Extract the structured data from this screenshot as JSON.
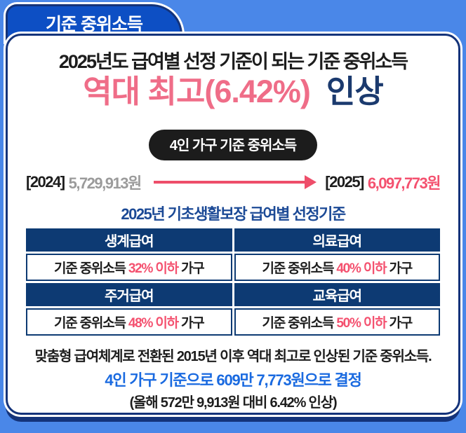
{
  "colors": {
    "background_blue": "#4a87e8",
    "tab_blue": "#0d4fc4",
    "border_navy": "#14337a",
    "table_header_navy": "#0d3a73",
    "headline_pink": "#ef6d88",
    "value_pink": "#f4516f",
    "arrow_pink": "#ee4e6a",
    "headline_navy": "#1b3a6e",
    "table_title_navy": "#1c4a96",
    "footer_blue": "#1a6ae0",
    "muted_gray": "#9b9b9b",
    "pill_black": "#1c1c1c"
  },
  "tab": {
    "label": "기준 중위소득"
  },
  "header": {
    "title": "2025년도 급여별 선정 기준이 되는 기준 중위소득",
    "headline_highlight": "역대 최고(6.42%)",
    "headline_rest": "  인상"
  },
  "badge": {
    "label": "4인 가구 기준 중위소득"
  },
  "comparison": {
    "before_label": "[2024]",
    "before_value": "5,729,913원",
    "after_label": "[2025]",
    "after_value": "6,097,773원"
  },
  "table": {
    "title": "2025년 기초생활보장 급여별 선정기준",
    "cells": [
      {
        "header": "생계급여",
        "pre": "기준 중위소득 ",
        "highlight": "32% 이하",
        "post": " 가구"
      },
      {
        "header": "의료급여",
        "pre": "기준 중위소득 ",
        "highlight": "40% 이하",
        "post": " 가구"
      },
      {
        "header": "주거급여",
        "pre": "기준 중위소득 ",
        "highlight": "48% 이하",
        "post": " 가구"
      },
      {
        "header": "교육급여",
        "pre": "기준 중위소득 ",
        "highlight": "50% 이하",
        "post": " 가구"
      }
    ]
  },
  "footer": {
    "line1": "맞춤형 급여체계로 전환된 2015년 이후 역대 최고로 인상된 기준 중위소득.",
    "line2": "4인 가구 기준으로 609만 7,773원으로 결정",
    "line3": "(올해 572만 9,913원 대비 6.42% 인상)"
  }
}
